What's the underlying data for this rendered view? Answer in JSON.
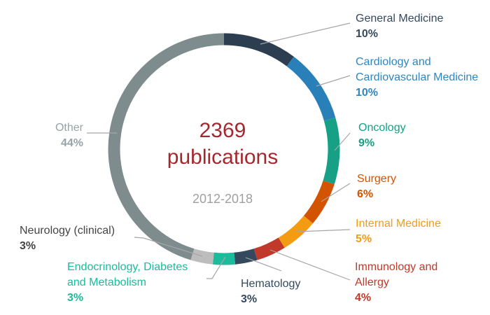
{
  "chart_data": {
    "type": "pie",
    "donut": true,
    "center_value": "2369",
    "center_label": "publications",
    "center_subtitle": "2012-2018",
    "slices": [
      {
        "label": [
          "General Medicine"
        ],
        "value": 10,
        "pct": "10%",
        "color": "#2c3e50",
        "label_color": "#34495e"
      },
      {
        "label": [
          "Cardiology and",
          "Cardiovascular Medicine"
        ],
        "value": 10,
        "pct": "10%",
        "color": "#2980b9",
        "label_color": "#2e86c1"
      },
      {
        "label": [
          "Oncology"
        ],
        "value": 9,
        "pct": "9%",
        "color": "#16a085",
        "label_color": "#16a085"
      },
      {
        "label": [
          "Surgery"
        ],
        "value": 6,
        "pct": "6%",
        "color": "#d35400",
        "label_color": "#d35400"
      },
      {
        "label": [
          "Internal Medicine"
        ],
        "value": 5,
        "pct": "5%",
        "color": "#f39c12",
        "label_color": "#f39c12"
      },
      {
        "label": [
          "Immunology and",
          "Allergy"
        ],
        "value": 4,
        "pct": "4%",
        "color": "#c0392b",
        "label_color": "#c0392b"
      },
      {
        "label": [
          "Hematology"
        ],
        "value": 3,
        "pct": "3%",
        "color": "#34495e",
        "label_color": "#34495e"
      },
      {
        "label": [
          "Endocrinology, Diabetes",
          "and Metabolism"
        ],
        "value": 3,
        "pct": "3%",
        "color": "#1abc9c",
        "label_color": "#1abc9c"
      },
      {
        "label": [
          "Neurology (clinical)"
        ],
        "value": 3,
        "pct": "3%",
        "color": "#bdbdbd",
        "label_color": "#444444"
      },
      {
        "label": [
          "Other"
        ],
        "value": 44,
        "pct": "44%",
        "color": "#7f8c8d",
        "label_color": "#95a5a6"
      }
    ],
    "center_value_color": "#a4282e",
    "subtitle_color": "#a0a0a0"
  }
}
